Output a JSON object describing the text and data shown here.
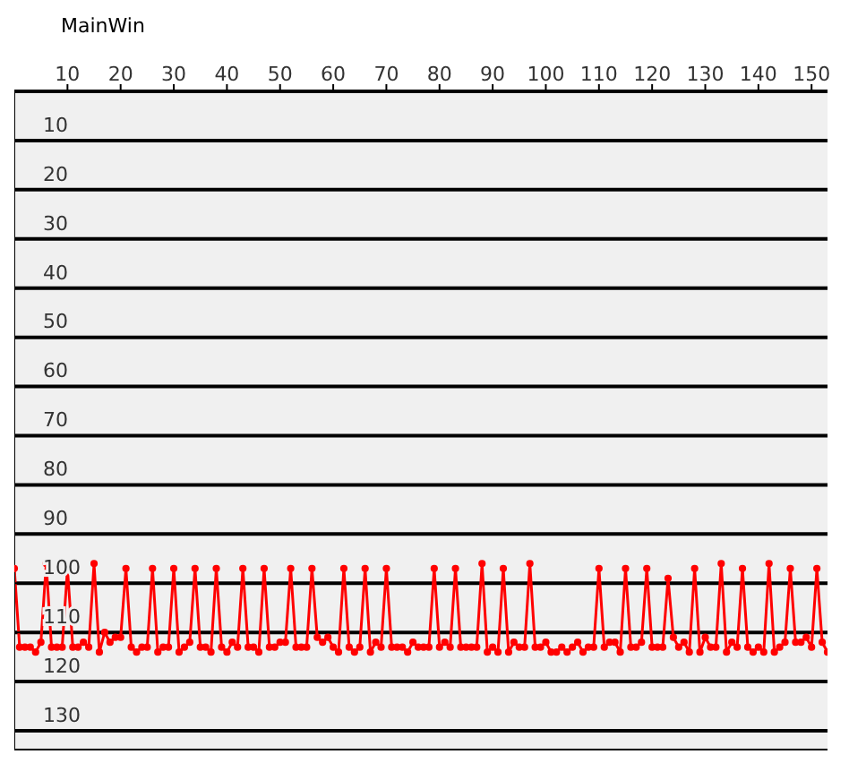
{
  "chart_data": {
    "type": "line",
    "title": "MainWin",
    "x": [
      0,
      1,
      2,
      3,
      4,
      5,
      6,
      7,
      8,
      9,
      10,
      11,
      12,
      13,
      14,
      15,
      16,
      17,
      18,
      19,
      20,
      21,
      22,
      23,
      24,
      25,
      26,
      27,
      28,
      29,
      30,
      31,
      32,
      33,
      34,
      35,
      36,
      37,
      38,
      39,
      40,
      41,
      42,
      43,
      44,
      45,
      46,
      47,
      48,
      49,
      50,
      51,
      52,
      53,
      54,
      55,
      56,
      57,
      58,
      59,
      60,
      61,
      62,
      63,
      64,
      65,
      66,
      67,
      68,
      69,
      70,
      71,
      72,
      73,
      74,
      75,
      76,
      77,
      78,
      79,
      80,
      81,
      82,
      83,
      84,
      85,
      86,
      87,
      88,
      89,
      90,
      91,
      92,
      93,
      94,
      95,
      96,
      97,
      98,
      99,
      100,
      101,
      102,
      103,
      104,
      105,
      106,
      107,
      108,
      109,
      110,
      111,
      112,
      113,
      114,
      115,
      116,
      117,
      118,
      119,
      120,
      121,
      122,
      123,
      124,
      125,
      126,
      127,
      128,
      129,
      130,
      131,
      132,
      133,
      134,
      135,
      136,
      137,
      138,
      139,
      140,
      141,
      142,
      143,
      144,
      145,
      146,
      147,
      148,
      149,
      150,
      151,
      152,
      153
    ],
    "series": [
      {
        "color": "#ff0000",
        "values": [
          97,
          113,
          113,
          113,
          114,
          112,
          96,
          113,
          113,
          113,
          97,
          113,
          113,
          112,
          113,
          96,
          114,
          110,
          112,
          111,
          111,
          97,
          113,
          114,
          113,
          113,
          97,
          114,
          113,
          113,
          97,
          114,
          113,
          112,
          97,
          113,
          113,
          114,
          97,
          113,
          114,
          112,
          113,
          97,
          113,
          113,
          114,
          97,
          113,
          113,
          112,
          112,
          97,
          113,
          113,
          113,
          97,
          111,
          112,
          111,
          113,
          114,
          97,
          113,
          114,
          113,
          97,
          114,
          112,
          113,
          97,
          113,
          113,
          113,
          114,
          112,
          113,
          113,
          113,
          97,
          113,
          112,
          113,
          97,
          113,
          113,
          113,
          113,
          96,
          114,
          113,
          114,
          97,
          114,
          112,
          113,
          113,
          96,
          113,
          113,
          112,
          114,
          114,
          113,
          114,
          113,
          112,
          114,
          113,
          113,
          97,
          113,
          112,
          112,
          114,
          97,
          113,
          113,
          112,
          97,
          113,
          113,
          113,
          99,
          111,
          113,
          112,
          114,
          97,
          114,
          111,
          113,
          113,
          96,
          114,
          112,
          113,
          97,
          113,
          114,
          113,
          114,
          96,
          114,
          113,
          112,
          97,
          112,
          112,
          111,
          113,
          97,
          112,
          114
        ]
      }
    ],
    "xlim": [
      0,
      153
    ],
    "xticks": [
      10,
      20,
      30,
      40,
      50,
      60,
      70,
      80,
      90,
      100,
      110,
      120,
      130,
      140,
      150
    ],
    "ylim": [
      134,
      0
    ],
    "yticks": [
      10,
      20,
      30,
      40,
      50,
      60,
      70,
      80,
      90,
      100,
      110,
      120,
      130
    ],
    "grid": "y",
    "marker": "circle",
    "line_style": "solid"
  }
}
